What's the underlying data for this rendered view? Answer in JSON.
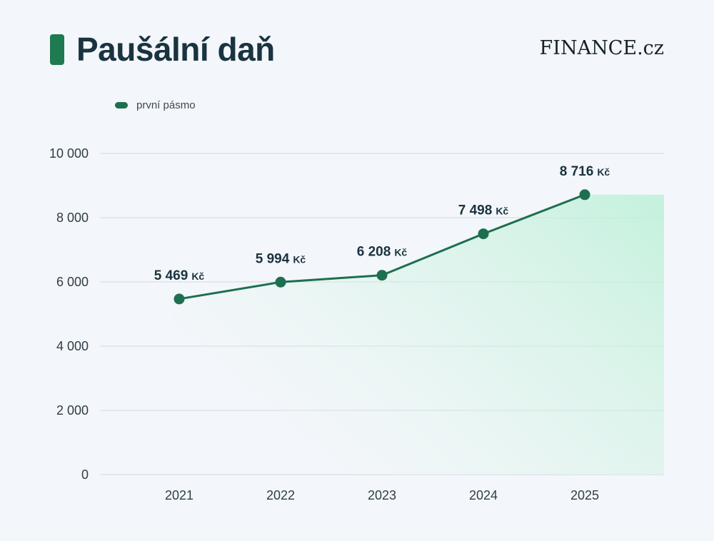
{
  "chart_data": {
    "type": "line",
    "title": "Paušální daň",
    "categories": [
      "2021",
      "2022",
      "2023",
      "2024",
      "2025"
    ],
    "series": [
      {
        "name": "první pásmo",
        "values": [
          5469,
          5994,
          6208,
          7498,
          8716
        ],
        "labels": [
          "5 469",
          "5 994",
          "6 208",
          "7 498",
          "8 716"
        ],
        "unit": "Kč"
      }
    ],
    "ylim": [
      0,
      10000
    ],
    "yticks": [
      0,
      2000,
      4000,
      6000,
      8000,
      10000
    ],
    "ytick_labels": [
      "0",
      "2 000",
      "4 000",
      "6 000",
      "8 000",
      "10 000"
    ],
    "grid": true,
    "legend": "top-left"
  },
  "brand": "FINANCE.cz",
  "colors": {
    "line": "#1e6f4f",
    "accent": "#1e7a50",
    "area": "#bdf0d8",
    "grid": "#d5dbe0"
  }
}
